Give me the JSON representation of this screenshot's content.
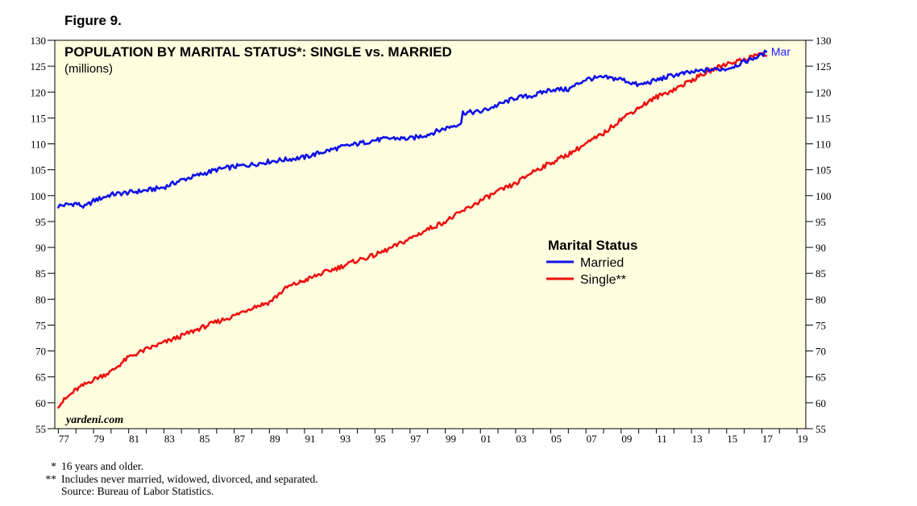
{
  "figure_label": "Figure 9.",
  "watermark": "yardeni.com",
  "end_label": "Mar",
  "footnotes": [
    {
      "mark": "*",
      "text": "16 years and older."
    },
    {
      "mark": "**",
      "text": "Includes never married, widowed, divorced, and separated."
    },
    {
      "mark": "",
      "text": "Source: Bureau of Labor Statistics."
    }
  ],
  "chart_data": {
    "type": "line",
    "title": "POPULATION BY MARITAL STATUS*: SINGLE vs. MARRIED",
    "subtitle": "(millions)",
    "xlabel": "",
    "ylabel": "",
    "xlim": [
      1976.8,
      2019.5
    ],
    "ylim": [
      55,
      130
    ],
    "yticks": [
      55,
      60,
      65,
      70,
      75,
      80,
      85,
      90,
      95,
      100,
      105,
      110,
      115,
      120,
      125,
      130
    ],
    "xtick_labels": [
      "77",
      "79",
      "81",
      "83",
      "85",
      "87",
      "89",
      "91",
      "93",
      "95",
      "97",
      "99",
      "01",
      "03",
      "05",
      "07",
      "09",
      "11",
      "13",
      "15",
      "17",
      "19"
    ],
    "xtick_years": [
      1977,
      1979,
      1981,
      1983,
      1985,
      1987,
      1989,
      1991,
      1993,
      1995,
      1997,
      1999,
      2001,
      2003,
      2005,
      2007,
      2009,
      2011,
      2013,
      2015,
      2017,
      2019
    ],
    "background": "#ffffe0",
    "legend": {
      "title": "Marital Status",
      "position": "center-right"
    },
    "series": [
      {
        "name": "Married",
        "color": "#1010e8",
        "x": [
          1977.0,
          1978.0,
          1978.5,
          1979.0,
          1980.0,
          1981.0,
          1982.0,
          1983.0,
          1984.0,
          1985.0,
          1986.0,
          1987.0,
          1988.0,
          1989.0,
          1990.0,
          1991.0,
          1992.0,
          1993.0,
          1994.0,
          1995.0,
          1996.0,
          1997.0,
          1998.0,
          1999.0,
          1999.9,
          2000.0,
          2001.0,
          2002.0,
          2003.0,
          2004.0,
          2005.0,
          2006.0,
          2007.0,
          2008.0,
          2009.0,
          2010.0,
          2011.0,
          2012.0,
          2013.0,
          2014.0,
          2015.0,
          2016.0,
          2017.0,
          2017.25
        ],
        "values": [
          98.0,
          98.5,
          97.8,
          99.0,
          100.2,
          100.6,
          101.0,
          101.6,
          103.0,
          104.0,
          105.0,
          105.6,
          106.0,
          106.6,
          107.0,
          107.4,
          108.4,
          109.3,
          110.0,
          110.7,
          111.1,
          111.0,
          111.8,
          113.0,
          114.0,
          116.0,
          116.2,
          117.5,
          118.9,
          119.3,
          120.5,
          120.5,
          122.5,
          122.8,
          122.5,
          121.3,
          122.3,
          123.3,
          123.8,
          124.3,
          124.5,
          125.8,
          127.2,
          127.8
        ]
      },
      {
        "name": "Single**",
        "color": "#ee1111",
        "x": [
          1977.0,
          1978.0,
          1979.0,
          1980.0,
          1981.0,
          1982.0,
          1983.0,
          1984.0,
          1985.0,
          1986.0,
          1987.0,
          1988.0,
          1989.0,
          1990.0,
          1991.0,
          1992.0,
          1993.0,
          1994.0,
          1995.0,
          1996.0,
          1997.0,
          1998.0,
          1999.0,
          2000.0,
          2001.0,
          2002.0,
          2003.0,
          2004.0,
          2005.0,
          2006.0,
          2007.0,
          2008.0,
          2009.0,
          2010.0,
          2011.0,
          2012.0,
          2013.0,
          2014.0,
          2015.0,
          2016.0,
          2017.0,
          2017.25
        ],
        "values": [
          59.5,
          62.5,
          64.5,
          66.0,
          68.8,
          70.3,
          71.6,
          72.9,
          74.3,
          75.6,
          76.8,
          78.4,
          79.4,
          82.3,
          83.6,
          85.0,
          86.2,
          87.5,
          88.5,
          90.0,
          91.7,
          93.5,
          95.0,
          97.0,
          99.0,
          100.8,
          102.3,
          104.7,
          106.3,
          108.0,
          110.0,
          112.0,
          114.8,
          117.0,
          119.0,
          120.5,
          122.3,
          124.0,
          125.5,
          126.3,
          127.5,
          127.0
        ]
      }
    ]
  }
}
